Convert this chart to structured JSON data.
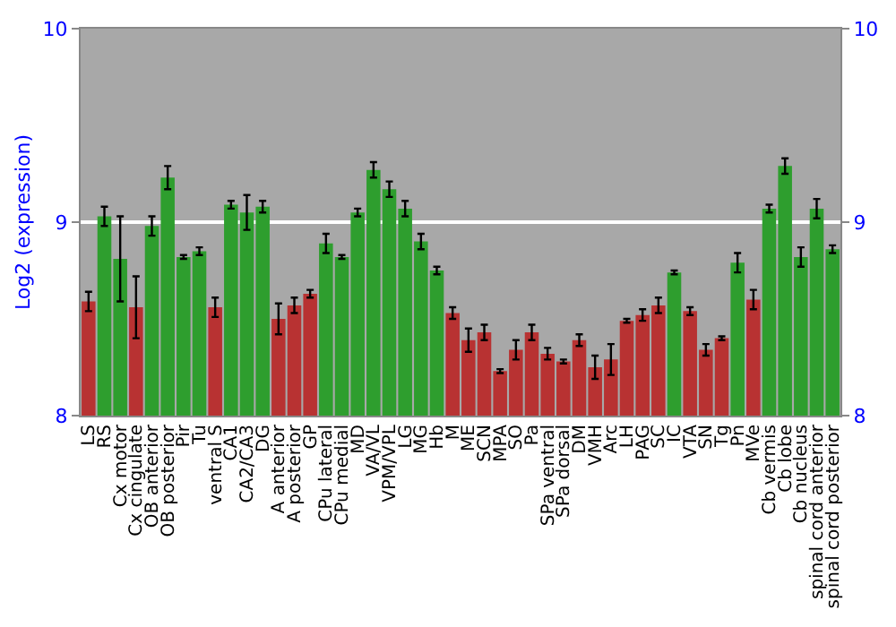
{
  "chart_data": {
    "type": "bar",
    "ylabel": "Log2 (expression)",
    "categories": [
      "LS",
      "RS",
      "Cx motor",
      "Cx cingulate",
      "OB anterior",
      "OB posterior",
      "Pir",
      "Tu",
      "ventral S",
      "CA1",
      "CA2/CA3",
      "DG",
      "A anterior",
      "A posterior",
      "GP",
      "CPu lateral",
      "CPu medial",
      "MD",
      "VA/VL",
      "VPM/VPL",
      "LG",
      "MG",
      "Hb",
      "M",
      "ME",
      "SCN",
      "MPA",
      "SO",
      "Pa",
      "SPa ventral",
      "SPa dorsal",
      "DM",
      "VMH",
      "Arc",
      "LH",
      "PAG",
      "SC",
      "IC",
      "VTA",
      "SN",
      "Tg",
      "Pn",
      "MVe",
      "Cb vermis",
      "Cb lobe",
      "Cb nucleus",
      "spinal cord anterior",
      "spinal cord posterior"
    ],
    "values": [
      8.59,
      9.03,
      8.81,
      8.56,
      8.98,
      9.23,
      8.82,
      8.85,
      8.56,
      9.09,
      9.05,
      9.08,
      8.5,
      8.57,
      8.63,
      8.89,
      8.82,
      9.05,
      9.27,
      9.17,
      9.07,
      8.9,
      8.75,
      8.53,
      8.39,
      8.43,
      8.23,
      8.34,
      8.43,
      8.32,
      8.28,
      8.39,
      8.25,
      8.29,
      8.49,
      8.52,
      8.57,
      8.74,
      8.54,
      8.34,
      8.4,
      8.79,
      8.6,
      9.07,
      9.29,
      8.82,
      9.07,
      8.86
    ],
    "errors": [
      0.05,
      0.05,
      0.22,
      0.16,
      0.05,
      0.06,
      0.01,
      0.02,
      0.05,
      0.02,
      0.09,
      0.03,
      0.08,
      0.04,
      0.02,
      0.05,
      0.01,
      0.02,
      0.04,
      0.04,
      0.04,
      0.04,
      0.02,
      0.03,
      0.06,
      0.04,
      0.01,
      0.05,
      0.04,
      0.03,
      0.01,
      0.03,
      0.06,
      0.08,
      0.01,
      0.03,
      0.04,
      0.01,
      0.02,
      0.03,
      0.01,
      0.05,
      0.05,
      0.02,
      0.04,
      0.05,
      0.05,
      0.02
    ],
    "colors": [
      "#b83232",
      "#2e9e2e",
      "#2e9e2e",
      "#b83232",
      "#2e9e2e",
      "#2e9e2e",
      "#2e9e2e",
      "#2e9e2e",
      "#b83232",
      "#2e9e2e",
      "#2e9e2e",
      "#2e9e2e",
      "#b83232",
      "#b83232",
      "#b83232",
      "#2e9e2e",
      "#2e9e2e",
      "#2e9e2e",
      "#2e9e2e",
      "#2e9e2e",
      "#2e9e2e",
      "#2e9e2e",
      "#2e9e2e",
      "#b83232",
      "#b83232",
      "#b83232",
      "#b83232",
      "#b83232",
      "#b83232",
      "#b83232",
      "#b83232",
      "#b83232",
      "#b83232",
      "#b83232",
      "#b83232",
      "#b83232",
      "#b83232",
      "#2e9e2e",
      "#b83232",
      "#b83232",
      "#b83232",
      "#2e9e2e",
      "#b83232",
      "#2e9e2e",
      "#2e9e2e",
      "#2e9e2e",
      "#2e9e2e",
      "#2e9e2e"
    ],
    "ylim": [
      8,
      10
    ],
    "yticks": [
      8,
      9,
      10
    ],
    "y2lim": [
      8,
      10
    ],
    "y2ticks": [
      8,
      9,
      10
    ],
    "grid": "y"
  }
}
